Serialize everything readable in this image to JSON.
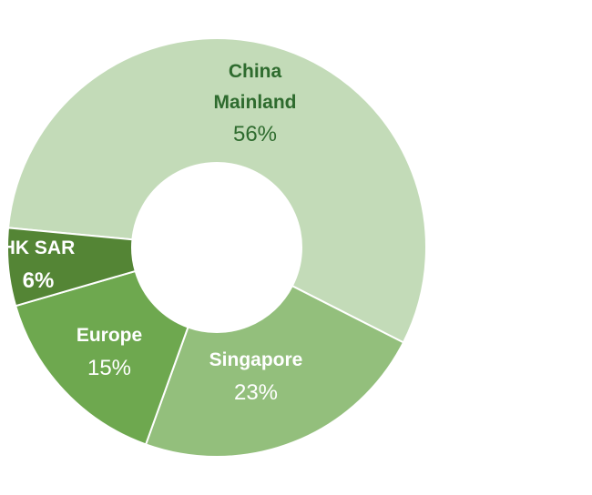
{
  "chart_data": {
    "type": "donut",
    "categories": [
      "China Mainland",
      "Singapore",
      "Europe",
      "HK SAR"
    ],
    "values": [
      56,
      23,
      15,
      6
    ],
    "value_labels": [
      "56%",
      "23%",
      "15%",
      "6%"
    ],
    "colors": [
      "#c3dbb8",
      "#93bf7c",
      "#6ea84f",
      "#548535"
    ]
  }
}
